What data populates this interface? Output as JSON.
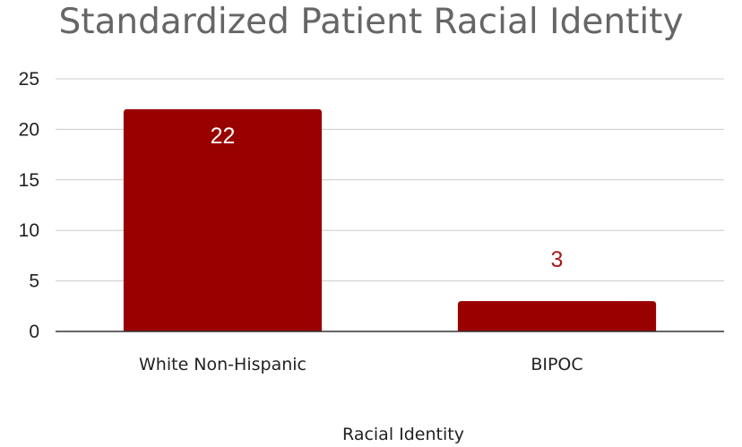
{
  "chart_data": {
    "type": "bar",
    "title": "Standardized Patient Racial Identity",
    "xlabel": "Racial Identity",
    "ylabel": "",
    "categories": [
      "White Non-Hispanic",
      "BIPOC"
    ],
    "values": [
      22,
      3
    ],
    "data_labels": [
      "22",
      "3"
    ],
    "ylim": [
      0,
      25
    ],
    "yticks": [
      "0",
      "5",
      "10",
      "15",
      "20",
      "25"
    ],
    "grid": true,
    "legend": "none",
    "bar_color": "#990000",
    "data_label_inside_color": "#ffffff",
    "data_label_outside_color": "#a61c1c"
  }
}
